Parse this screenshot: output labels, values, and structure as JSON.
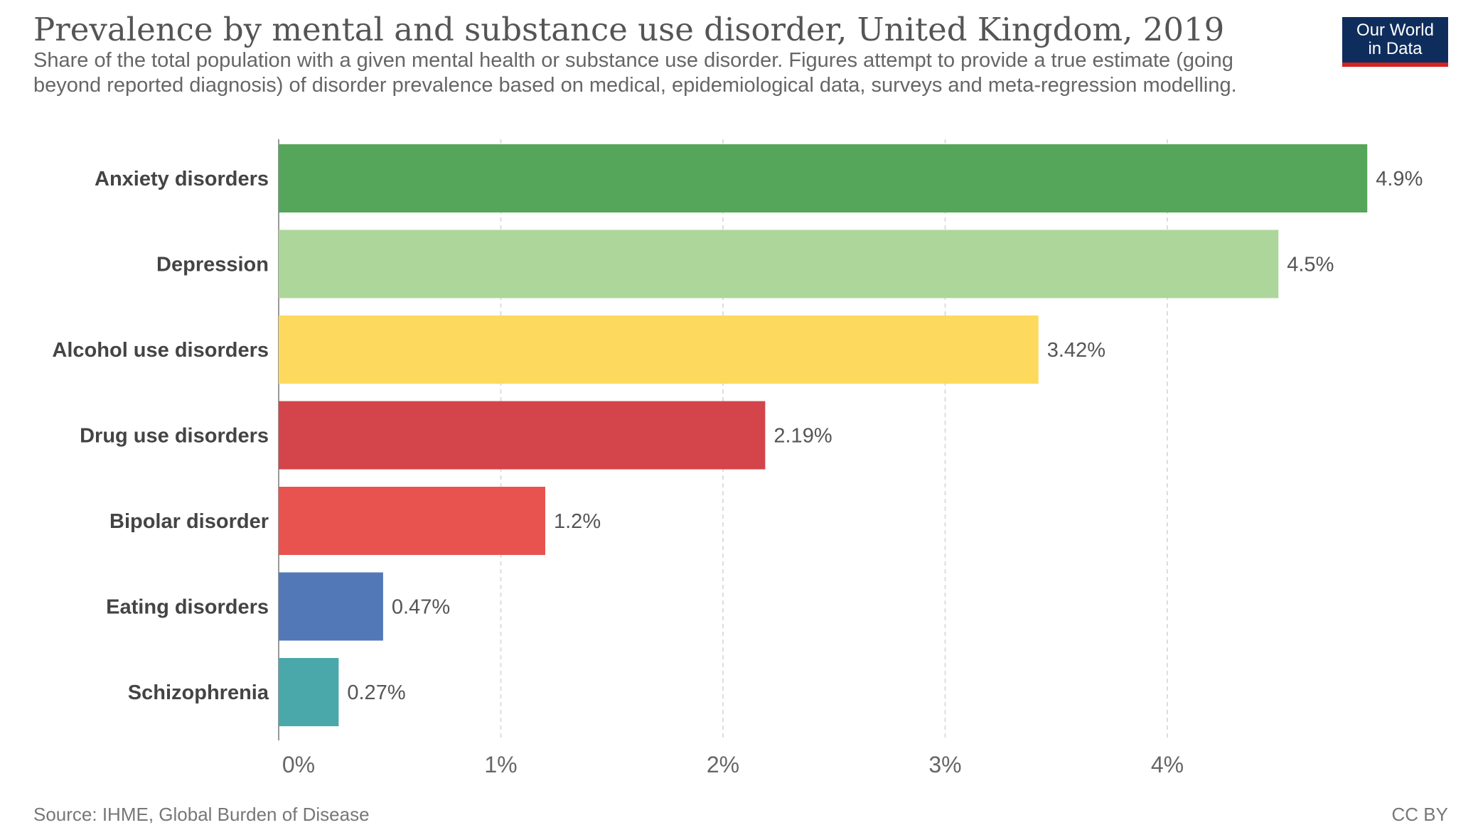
{
  "header": {
    "title": "Prevalence by mental and substance use disorder, United Kingdom, 2019",
    "subtitle": "Share of the total population with a given mental health or substance use disorder. Figures attempt to provide a true estimate (going beyond reported diagnosis) of disorder prevalence based on medical, epidemiological data, surveys and meta-regression modelling.",
    "logo_line1": "Our World",
    "logo_line2": "in Data"
  },
  "footer": {
    "source": "Source: IHME, Global Burden of Disease",
    "license": "CC BY"
  },
  "chart_data": {
    "type": "bar",
    "orientation": "horizontal",
    "title": "Prevalence by mental and substance use disorder, United Kingdom, 2019",
    "categories": [
      "Anxiety disorders",
      "Depression",
      "Alcohol use disorders",
      "Drug use disorders",
      "Bipolar disorder",
      "Eating disorders",
      "Schizophrenia"
    ],
    "values": [
      4.9,
      4.5,
      3.42,
      2.19,
      1.2,
      0.47,
      0.27
    ],
    "value_labels": [
      "4.9%",
      "4.5%",
      "3.42%",
      "2.19%",
      "1.2%",
      "0.47%",
      "0.27%"
    ],
    "colors": [
      "#55a65a",
      "#add69b",
      "#fdda5e",
      "#d3454a",
      "#e9534f",
      "#5378b8",
      "#4aa8ab"
    ],
    "xlim": [
      0,
      4.9
    ],
    "xticks": [
      0,
      1,
      2,
      3,
      4
    ],
    "xtick_labels": [
      "0%",
      "1%",
      "2%",
      "3%",
      "4%"
    ],
    "grid": "vertical dashed",
    "xlabel": "",
    "ylabel": ""
  }
}
